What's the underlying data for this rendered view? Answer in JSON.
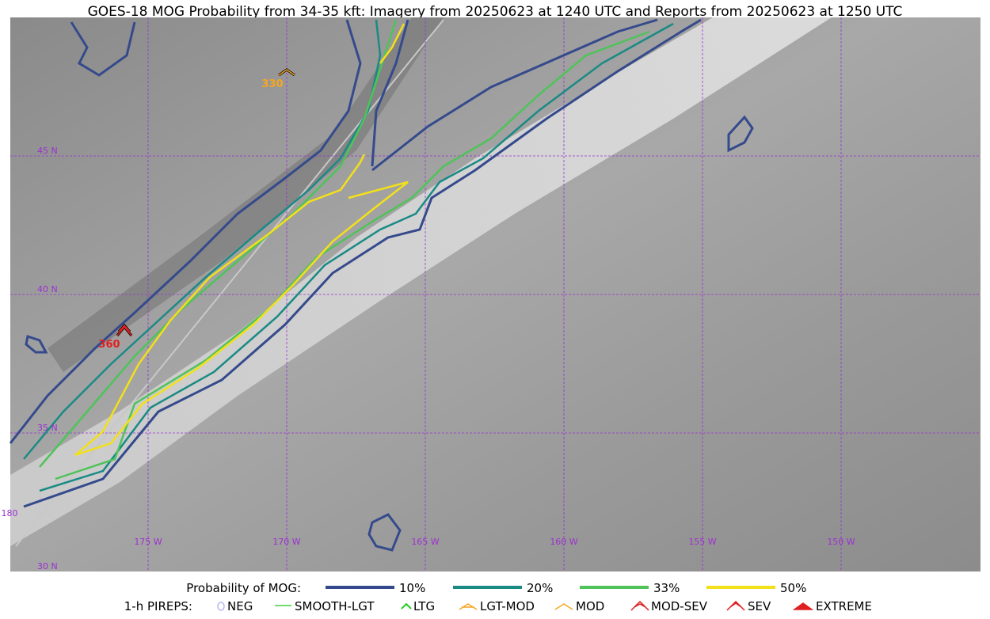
{
  "header": {
    "title": "GOES-18 MOG Probability from 34-35 kft: Imagery from 20250623 at 1240 UTC and Reports from 20250623 at 1250 UTC"
  },
  "map": {
    "latitude_labels": [
      "45 N",
      "40 N",
      "35 N",
      "30 N"
    ],
    "longitude_labels": [
      "175 W",
      "170 W",
      "165 W",
      "160 W",
      "155 W",
      "150 W",
      "180"
    ],
    "pirep_labels": [
      "330",
      "360"
    ]
  },
  "legend": {
    "probability_title": "Probability of MOG:",
    "probability_levels": [
      "10%",
      "20%",
      "33%",
      "50%"
    ],
    "pireps_title": "1-h PIREPS:",
    "pireps": [
      "NEG",
      "SMOOTH-LGT",
      "LTG",
      "LGT-MOD",
      "MOD",
      "MOD-SEV",
      "SEV",
      "EXTREME"
    ]
  }
}
